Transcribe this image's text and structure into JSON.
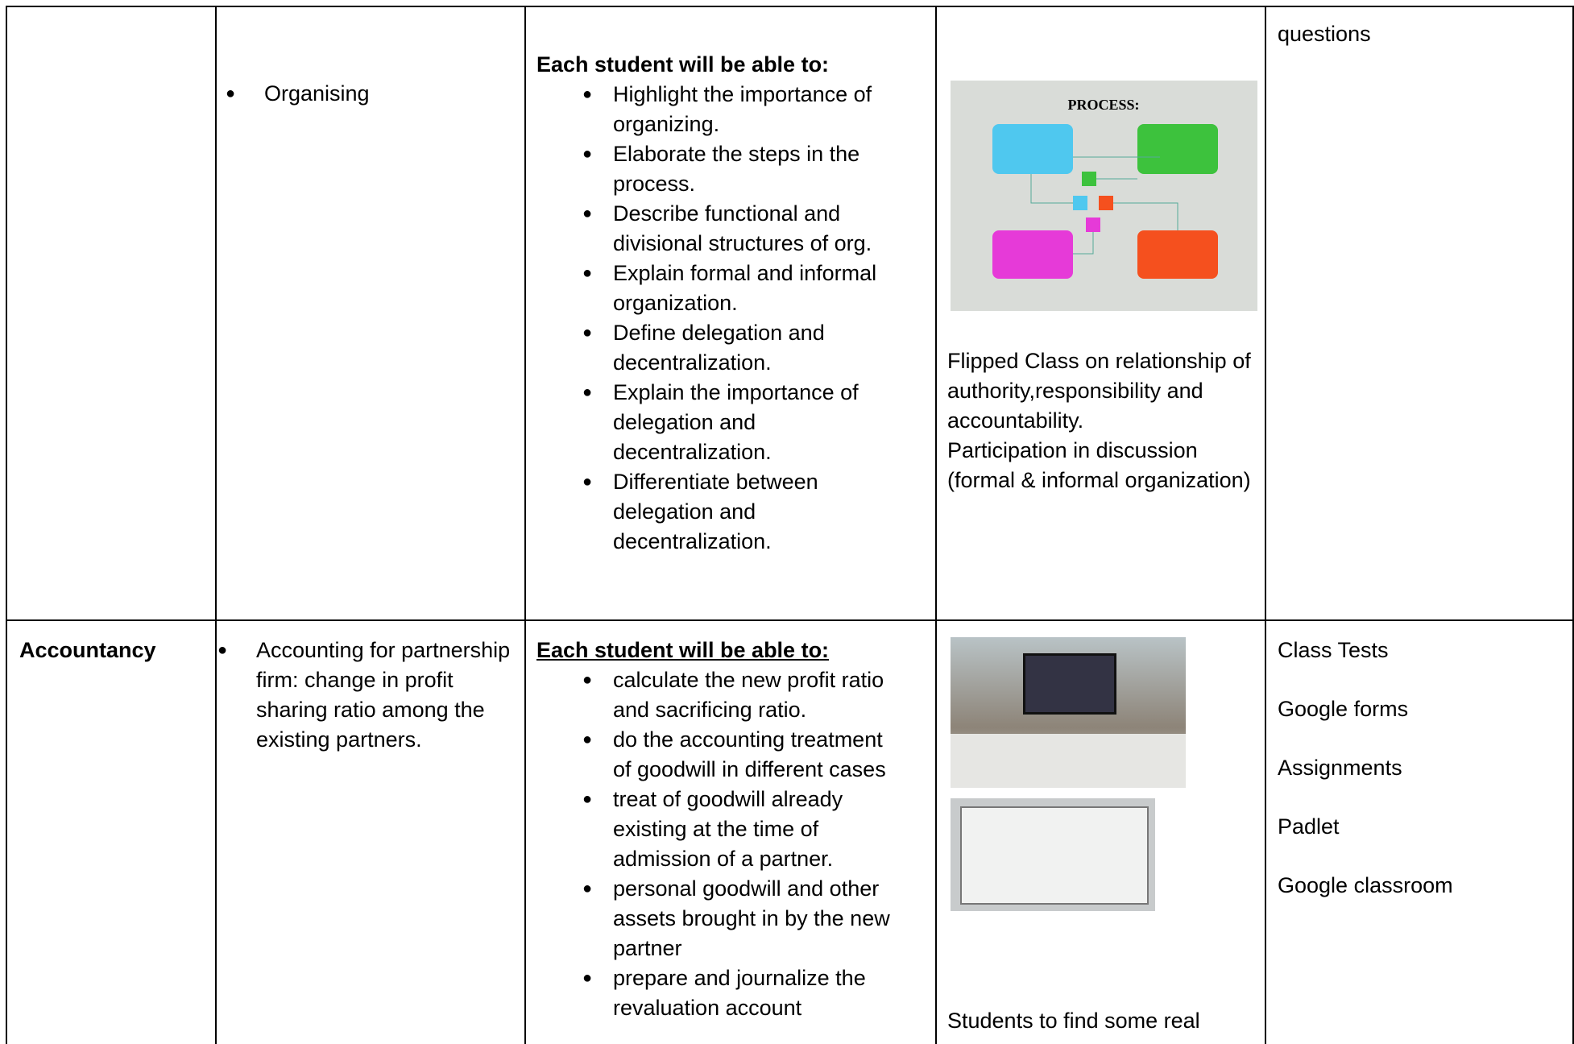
{
  "table": {
    "rows": [
      {
        "subject": "",
        "topic": [
          "Organising"
        ],
        "outcomes_heading": "Each student will be able to:",
        "outcomes": [
          "Highlight the importance of organizing.",
          "Elaborate the steps in the process.",
          "Describe functional and divisional structures of org.",
          "Explain formal and informal organization.",
          "Define delegation and decentralization.",
          "Explain the importance of delegation and decentralization.",
          "Differentiate between delegation and decentralization."
        ],
        "activity_image_title": "PROCESS:",
        "activities": [
          "Flipped Class on relationship of authority,responsibility and accountability.",
          "Participation in discussion (formal & informal organization)"
        ],
        "assessment": [
          "questions"
        ]
      },
      {
        "subject": "Accountancy",
        "topic": [
          "Accounting for partnership firm: change in profit sharing ratio among the existing partners."
        ],
        "outcomes_heading": "Each student will be able to:",
        "outcomes": [
          "calculate the new profit ratio and sacrificing ratio.",
          "do the accounting treatment of goodwill in different cases",
          "treat of goodwill already existing at the time of admission of a partner.",
          "personal goodwill and other assets brought in by the new partner",
          "prepare and journalize the revaluation account"
        ],
        "activities": [
          "Students to find some real"
        ],
        "assessment": [
          "Class Tests",
          "Google forms",
          "Assignments",
          "Padlet",
          "Google classroom"
        ]
      }
    ]
  }
}
